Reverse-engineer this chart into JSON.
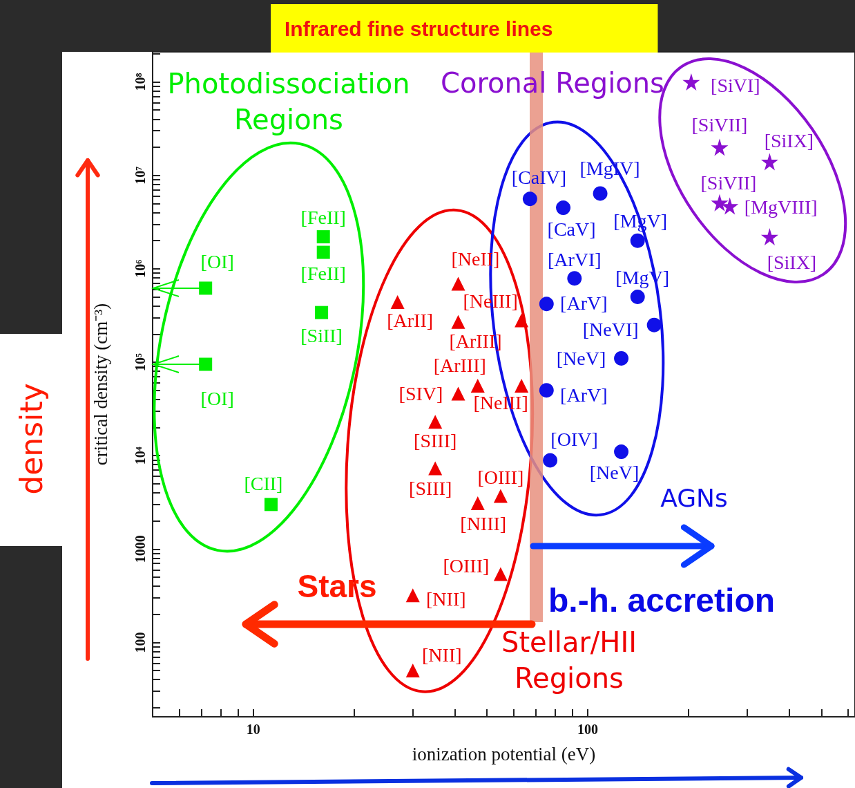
{
  "chart_data": {
    "type": "scatter",
    "title": "Infrared fine structure lines",
    "xlabel": "ionization potential (eV)",
    "ylabel": "critical density (cm⁻³)",
    "log": "xy",
    "grid": false,
    "legend": false,
    "xlim": [
      5,
      630
    ],
    "ylim": [
      16,
      210000000
    ],
    "xticks": [
      {
        "value": 6,
        "label": null
      },
      {
        "value": 7,
        "label": null
      },
      {
        "value": 8,
        "label": null
      },
      {
        "value": 9,
        "label": null
      },
      10,
      {
        "value": 20,
        "label": null
      },
      {
        "value": 30,
        "label": null
      },
      {
        "value": 40,
        "label": null
      },
      {
        "value": 50,
        "label": null
      },
      {
        "value": 60,
        "label": null
      },
      {
        "value": 70,
        "label": null
      },
      {
        "value": 80,
        "label": null
      },
      {
        "value": 90,
        "label": null
      },
      100,
      {
        "value": 200,
        "label": null
      },
      {
        "value": 300,
        "label": null
      },
      {
        "value": 400,
        "label": null
      },
      {
        "value": 500,
        "label": null
      },
      {
        "value": 600,
        "label": null
      }
    ],
    "yticks": [
      {
        "value": 20,
        "label": null
      },
      {
        "value": 30,
        "label": null
      },
      {
        "value": 40,
        "label": null
      },
      {
        "value": 50,
        "label": null
      },
      {
        "value": 60,
        "label": null
      },
      {
        "value": 70,
        "label": null
      },
      {
        "value": 80,
        "label": null
      },
      {
        "value": 90,
        "label": null
      },
      100,
      {
        "value": 200,
        "label": null
      },
      {
        "value": 300,
        "label": null
      },
      {
        "value": 400,
        "label": null
      },
      {
        "value": 500,
        "label": null
      },
      {
        "value": 600,
        "label": null
      },
      {
        "value": 700,
        "label": null
      },
      {
        "value": 800,
        "label": null
      },
      {
        "value": 900,
        "label": null
      },
      1000,
      {
        "value": 2000,
        "label": null
      },
      {
        "value": 3000,
        "label": null
      },
      {
        "value": 4000,
        "label": null
      },
      {
        "value": 5000,
        "label": null
      },
      {
        "value": 6000,
        "label": null
      },
      {
        "value": 7000,
        "label": null
      },
      {
        "value": 8000,
        "label": null
      },
      {
        "value": 9000,
        "label": null
      },
      {
        "value": 10000,
        "label": "10⁴"
      },
      {
        "value": 20000,
        "label": null
      },
      {
        "value": 30000,
        "label": null
      },
      {
        "value": 40000,
        "label": null
      },
      {
        "value": 50000,
        "label": null
      },
      {
        "value": 60000,
        "label": null
      },
      {
        "value": 70000,
        "label": null
      },
      {
        "value": 80000,
        "label": null
      },
      {
        "value": 90000,
        "label": null
      },
      {
        "value": 100000,
        "label": "10⁵"
      },
      {
        "value": 200000,
        "label": null
      },
      {
        "value": 300000,
        "label": null
      },
      {
        "value": 400000,
        "label": null
      },
      {
        "value": 500000,
        "label": null
      },
      {
        "value": 600000,
        "label": null
      },
      {
        "value": 700000,
        "label": null
      },
      {
        "value": 800000,
        "label": null
      },
      {
        "value": 900000,
        "label": null
      },
      {
        "value": 1000000,
        "label": "10⁶"
      },
      {
        "value": 2000000,
        "label": null
      },
      {
        "value": 3000000,
        "label": null
      },
      {
        "value": 4000000,
        "label": null
      },
      {
        "value": 5000000,
        "label": null
      },
      {
        "value": 6000000,
        "label": null
      },
      {
        "value": 7000000,
        "label": null
      },
      {
        "value": 8000000,
        "label": null
      },
      {
        "value": 9000000,
        "label": null
      },
      {
        "value": 10000000,
        "label": "10⁷"
      },
      {
        "value": 20000000,
        "label": null
      },
      {
        "value": 30000000,
        "label": null
      },
      {
        "value": 40000000,
        "label": null
      },
      {
        "value": 50000000,
        "label": null
      },
      {
        "value": 60000000,
        "label": null
      },
      {
        "value": 70000000,
        "label": null
      },
      {
        "value": 80000000,
        "label": null
      },
      {
        "value": 90000000,
        "label": null
      },
      {
        "value": 100000000,
        "label": "10⁸"
      },
      {
        "value": 200000000,
        "label": null
      }
    ],
    "ref_lines": [
      {
        "axis": "x",
        "value": 70,
        "color": "#e8907f"
      }
    ],
    "series": [
      {
        "name": "Photodissociation Regions",
        "color": "#00ee00",
        "marker": "square",
        "x": [
          7.2,
          7.2,
          16.2,
          16.2,
          16.0,
          11.3
        ],
        "values": [
          620000,
          95000,
          2200000,
          1500000,
          340000,
          3000
        ],
        "xerrors": [
          [
            5,
            7.2
          ],
          [
            5,
            7.2
          ],
          null,
          null,
          null,
          null
        ]
      },
      {
        "name": "Stellar/HII Regions",
        "color": "#ee0000",
        "marker": "triangle",
        "x": [
          41,
          27,
          41,
          63.4,
          46.9,
          41,
          63.4,
          35,
          35,
          54.9,
          46.9,
          54.9,
          30,
          30
        ],
        "values": [
          690000,
          440000,
          270000,
          280000,
          56000,
          46000,
          56000,
          23000,
          7300,
          3700,
          3100,
          540,
          320,
          50
        ]
      },
      {
        "name": "AGNs",
        "color": "#1010e8",
        "marker": "circle",
        "x": [
          67.2,
          109,
          84.5,
          141,
          91.3,
          141,
          75.3,
          158,
          126,
          75.3,
          77.2,
          126
        ],
        "values": [
          5600000,
          6400000,
          4500000,
          2000000,
          790000,
          500000,
          420000,
          250000,
          110000,
          50000,
          8900,
          11000
        ]
      },
      {
        "name": "Coronal Regions",
        "color": "#8a10d0",
        "marker": "star",
        "x": [
          204,
          248,
          350,
          248,
          266,
          350
        ],
        "values": [
          100000000,
          20000000,
          14000000,
          5100000,
          4700000,
          2200000
        ]
      }
    ],
    "annotations": [
      {
        "text": "[OI]",
        "x": 7.2,
        "y": 620000
      },
      {
        "text": "[OI]",
        "x": 7.2,
        "y": 95000
      },
      {
        "text": "[FeII]",
        "x": 16.2,
        "y": 2200000
      },
      {
        "text": "[FeII]",
        "x": 16.2,
        "y": 1500000
      },
      {
        "text": "[SiII]",
        "x": 16.0,
        "y": 340000
      },
      {
        "text": "[CII]",
        "x": 11.3,
        "y": 3000
      },
      {
        "text": "[NeII]",
        "x": 41,
        "y": 690000
      },
      {
        "text": "[ArII]",
        "x": 27,
        "y": 440000
      },
      {
        "text": "[ArIII]",
        "x": 41,
        "y": 270000
      },
      {
        "text": "[NeIII]",
        "x": 63.4,
        "y": 280000
      },
      {
        "text": "[ArIII]",
        "x": 46.9,
        "y": 56000
      },
      {
        "text": "[SIV]",
        "x": 41,
        "y": 46000
      },
      {
        "text": "[NeIII]",
        "x": 63.4,
        "y": 56000
      },
      {
        "text": "[SIII]",
        "x": 35,
        "y": 23000
      },
      {
        "text": "[SIII]",
        "x": 35,
        "y": 7300
      },
      {
        "text": "[OIII]",
        "x": 54.9,
        "y": 3700
      },
      {
        "text": "[NIII]",
        "x": 46.9,
        "y": 3100
      },
      {
        "text": "[OIII]",
        "x": 54.9,
        "y": 540
      },
      {
        "text": "[NII]",
        "x": 30,
        "y": 320
      },
      {
        "text": "[NII]",
        "x": 30,
        "y": 50
      },
      {
        "text": "[CaIV]",
        "x": 67.2,
        "y": 5600000
      },
      {
        "text": "[MgIV]",
        "x": 109,
        "y": 6400000
      },
      {
        "text": "[CaV]",
        "x": 84.5,
        "y": 4500000
      },
      {
        "text": "[MgV]",
        "x": 141,
        "y": 2000000
      },
      {
        "text": "[ArVI]",
        "x": 91.3,
        "y": 790000
      },
      {
        "text": "[MgV]",
        "x": 141,
        "y": 500000
      },
      {
        "text": "[ArV]",
        "x": 75.3,
        "y": 420000
      },
      {
        "text": "[NeVI]",
        "x": 158,
        "y": 250000
      },
      {
        "text": "[NeV]",
        "x": 126,
        "y": 110000
      },
      {
        "text": "[ArV]",
        "x": 75.3,
        "y": 50000
      },
      {
        "text": "[OIV]",
        "x": 77.2,
        "y": 8900
      },
      {
        "text": "[NeV]",
        "x": 126,
        "y": 11000
      },
      {
        "text": "[SiVI]",
        "x": 204,
        "y": 100000000
      },
      {
        "text": "[SiVII]",
        "x": 248,
        "y": 20000000
      },
      {
        "text": "[SiIX]",
        "x": 350,
        "y": 14000000
      },
      {
        "text": "[SiVII]",
        "x": 248,
        "y": 5100000
      },
      {
        "text": "[MgVIII]",
        "x": 266,
        "y": 4700000
      },
      {
        "text": "[SiIX]",
        "x": 350,
        "y": 2200000
      },
      "Stars",
      "b.-h. accretion",
      "density"
    ]
  }
}
